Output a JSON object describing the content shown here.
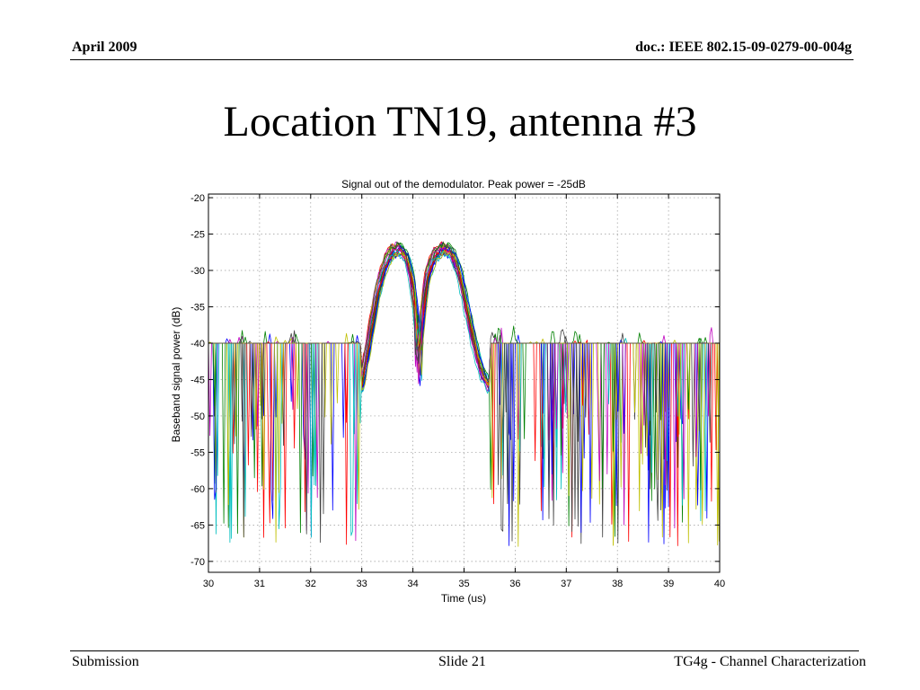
{
  "header": {
    "date": "April 2009",
    "doc_id": "doc.: IEEE 802.15-09-0279-00-004g"
  },
  "slide": {
    "title": "Location TN19, antenna #3"
  },
  "footer": {
    "left": "Submission",
    "center": "Slide 21",
    "right": "TG4g - Channel Characterization"
  },
  "chart_data": {
    "type": "line",
    "title": "Signal out of the demodulator. Peak power = -25dB",
    "xlabel": "Time (us)",
    "ylabel": "Baseband signal power (dB)",
    "xlim": [
      30,
      40
    ],
    "ylim": [
      -71.5,
      -19.5
    ],
    "xticks": [
      30,
      31,
      32,
      33,
      34,
      35,
      36,
      37,
      38,
      39,
      40
    ],
    "yticks": [
      -20,
      -25,
      -30,
      -35,
      -40,
      -45,
      -50,
      -55,
      -60,
      -65,
      -70
    ],
    "grid": true,
    "line_colors": [
      "#0000ff",
      "#008000",
      "#ff0000",
      "#00bfbf",
      "#bf00bf",
      "#bfbf00",
      "#404040"
    ],
    "series_count": 21,
    "peak_power_db": -25,
    "pulse": {
      "x": [
        33.0,
        33.15,
        33.3,
        33.45,
        33.6,
        33.75,
        33.9,
        34.0,
        34.08,
        34.14,
        34.2,
        34.3,
        34.45,
        34.6,
        34.75,
        34.9,
        35.05,
        35.2,
        35.35,
        35.5
      ],
      "y": [
        -46.0,
        -40.0,
        -33.5,
        -29.5,
        -27.5,
        -27.0,
        -28.5,
        -32.0,
        -37.0,
        -41.0,
        -36.0,
        -30.5,
        -27.8,
        -27.0,
        -27.5,
        -30.0,
        -35.0,
        -40.0,
        -44.0,
        -46.0
      ]
    },
    "noise_band_db": [
      -38,
      -58
    ],
    "min_dip_db": -71.5
  }
}
